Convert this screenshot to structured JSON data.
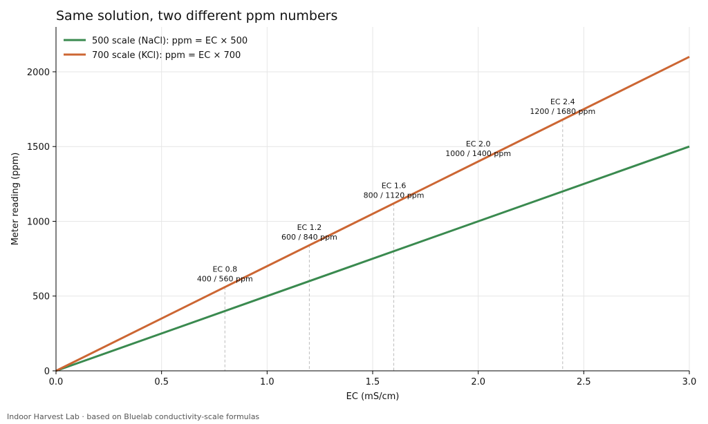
{
  "chart_data": {
    "type": "line",
    "title": "Same solution, two different ppm numbers",
    "xlabel": "EC (mS/cm)",
    "ylabel": "Meter reading (ppm)",
    "xlim": [
      0,
      3.0
    ],
    "ylim": [
      0,
      2300
    ],
    "xticks": [
      0.0,
      0.5,
      1.0,
      1.5,
      2.0,
      2.5,
      3.0
    ],
    "xtick_labels": [
      "0.0",
      "0.5",
      "1.0",
      "1.5",
      "2.0",
      "2.5",
      "3.0"
    ],
    "yticks": [
      0,
      500,
      1000,
      1500,
      2000
    ],
    "ytick_labels": [
      "0",
      "500",
      "1000",
      "1500",
      "2000"
    ],
    "grid": true,
    "legend_position": "top-left",
    "series": [
      {
        "name": "500 scale (NaCl): ppm = EC × 500",
        "color": "#3a8a4f",
        "x": [
          0,
          3.0
        ],
        "y": [
          0,
          1500
        ]
      },
      {
        "name": "700 scale (KCl): ppm = EC × 700",
        "color": "#cc6633",
        "x": [
          0,
          3.0
        ],
        "y": [
          0,
          2100
        ]
      }
    ],
    "annotations": [
      {
        "ec": 0.8,
        "top": 560,
        "line1": "EC 0.8",
        "line2": "400 / 560 ppm"
      },
      {
        "ec": 1.2,
        "top": 840,
        "line1": "EC 1.2",
        "line2": "600 / 840 ppm"
      },
      {
        "ec": 1.6,
        "top": 1120,
        "line1": "EC 1.6",
        "line2": "800 / 1120 ppm"
      },
      {
        "ec": 2.0,
        "top": 1400,
        "line1": "EC 2.0",
        "line2": "1000 / 1400 ppm"
      },
      {
        "ec": 2.4,
        "top": 1680,
        "line1": "EC 2.4",
        "line2": "1200 / 1680 ppm"
      }
    ],
    "markers": [
      0.8,
      1.2,
      1.6,
      2.4
    ]
  },
  "footer": "Indoor Harvest Lab · based on Bluelab conductivity-scale formulas"
}
